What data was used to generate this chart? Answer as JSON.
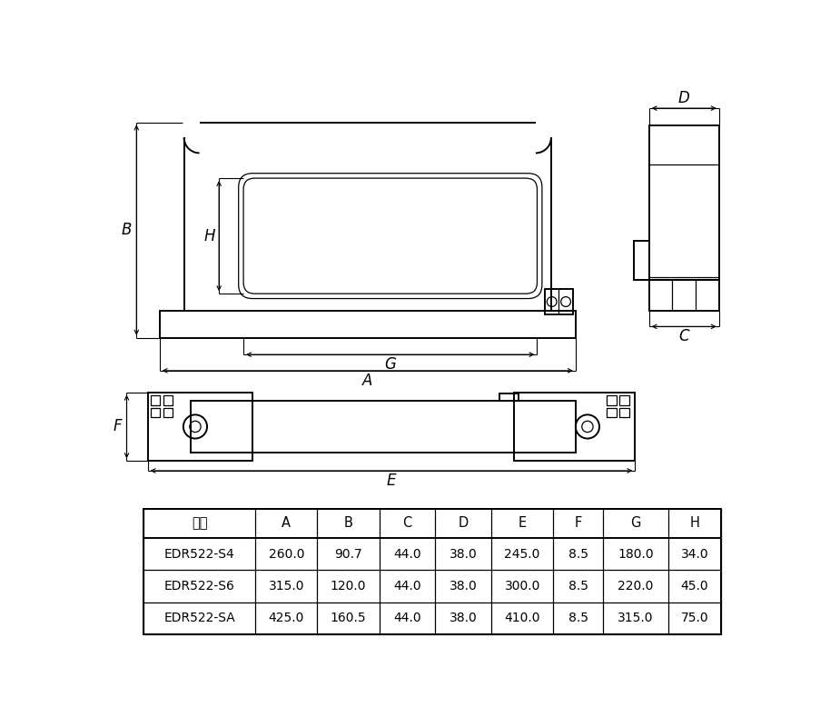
{
  "table_headers": [
    "型号",
    "A",
    "B",
    "C",
    "D",
    "E",
    "F",
    "G",
    "H"
  ],
  "table_rows": [
    [
      "EDR522-S4",
      "260.0",
      "90.7",
      "44.0",
      "38.0",
      "245.0",
      "8.5",
      "180.0",
      "34.0"
    ],
    [
      "EDR522-S6",
      "315.0",
      "120.0",
      "44.0",
      "38.0",
      "300.0",
      "8.5",
      "220.0",
      "45.0"
    ],
    [
      "EDR522-SA",
      "425.0",
      "160.5",
      "44.0",
      "38.0",
      "410.0",
      "8.5",
      "315.0",
      "75.0"
    ]
  ],
  "bg_color": "#ffffff"
}
